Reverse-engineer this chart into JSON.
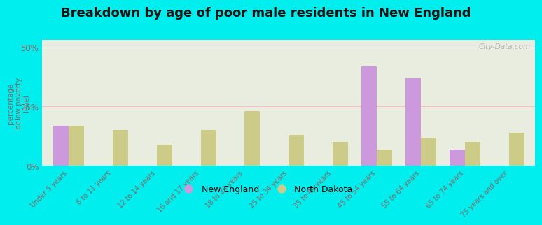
{
  "title": "Breakdown by age of poor male residents in New England",
  "categories": [
    "Under 5 years",
    "6 to 11 years",
    "12 to 14 years",
    "16 and 17 years",
    "18 to 24 years",
    "25 to 34 years",
    "35 to 44 years",
    "45 to 54 years",
    "55 to 64 years",
    "65 to 74 years",
    "75 years and over"
  ],
  "new_england": [
    17.0,
    0.0,
    0.0,
    0.0,
    0.0,
    0.0,
    0.0,
    42.0,
    37.0,
    7.0,
    0.0
  ],
  "north_dakota": [
    17.0,
    15.0,
    9.0,
    15.0,
    23.0,
    13.0,
    10.0,
    7.0,
    12.0,
    10.0,
    14.0
  ],
  "ne_color": "#cc99dd",
  "nd_color": "#cccc88",
  "background_color": "#00eeee",
  "plot_bg_top": "#e8ede0",
  "plot_bg_bottom": "#f0f0e8",
  "ylabel": "percentage\nbelow poverty\nlevel",
  "yticks": [
    0,
    25,
    50
  ],
  "ylim": [
    0,
    53
  ],
  "title_fontsize": 13,
  "legend_ne": "New England",
  "legend_nd": "North Dakota",
  "watermark": "City-Data.com",
  "bar_width": 0.35,
  "tick_label_color": "#886666",
  "ylabel_color": "#886666",
  "title_color": "#111111",
  "grid_color": "#ffffff",
  "axhline_color": "#ffbbbb"
}
